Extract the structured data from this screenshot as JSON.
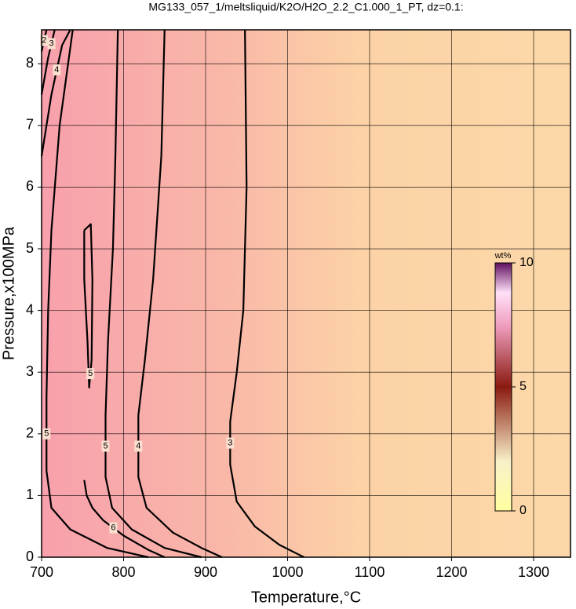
{
  "chart_data": {
    "type": "contour",
    "title": "MG133_057_1/meltsliquid/K2O/H2O_2.2_C1.000_1_PT, dz=0.1:",
    "x_label": "Temperature,°C",
    "y_label": "Pressure,x100MPa",
    "xlim": [
      700,
      1345
    ],
    "ylim": [
      0,
      8.55
    ],
    "xticks": [
      700,
      800,
      900,
      1000,
      1100,
      1200,
      1300
    ],
    "yticks": [
      0,
      1,
      2,
      3,
      4,
      5,
      6,
      7,
      8
    ],
    "grid": true,
    "contours": [
      {
        "level": 3,
        "x": [
          948,
          950,
          946,
          938,
          930,
          930,
          938,
          960,
          990,
          1020
        ],
        "y": [
          8.55,
          6,
          4,
          3,
          2.2,
          1.5,
          0.9,
          0.5,
          0.2,
          0
        ]
      },
      {
        "level": 4,
        "x": [
          850,
          846,
          836,
          826,
          818,
          818,
          828,
          860,
          895,
          920
        ],
        "y": [
          8.55,
          6.5,
          4.5,
          3.2,
          2.3,
          1.3,
          0.8,
          0.4,
          0.15,
          0
        ]
      },
      {
        "level": 5,
        "x": [
          793,
          790,
          787,
          781,
          778,
          778,
          786,
          810,
          850,
          895
        ],
        "y": [
          8.55,
          6.5,
          5,
          3.5,
          2.3,
          1.3,
          0.8,
          0.45,
          0.15,
          0
        ]
      },
      {
        "level": 5,
        "x": [
          738,
          722,
          712,
          708,
          706,
          706,
          712,
          735,
          780,
          830
        ],
        "y": [
          8.55,
          7,
          5.3,
          4,
          2.6,
          1.4,
          0.8,
          0.45,
          0.15,
          0
        ]
      },
      {
        "level": 5,
        "x": [
          752,
          760,
          762,
          761,
          758,
          756,
          752,
          752
        ],
        "y": [
          5.3,
          5.4,
          4.5,
          3.2,
          2.75,
          3.5,
          4.5,
          5.3
        ]
      },
      {
        "level": 6,
        "x": [
          752,
          755,
          762,
          775,
          800,
          830,
          850
        ],
        "y": [
          1.25,
          1.0,
          0.8,
          0.6,
          0.35,
          0.12,
          0
        ]
      },
      {
        "level": 4,
        "x": [
          700,
          712,
          725,
          735
        ],
        "y": [
          6.5,
          7.5,
          8.3,
          8.55
        ]
      },
      {
        "level": 3,
        "x": [
          700,
          708,
          716
        ],
        "y": [
          7.5,
          8.1,
          8.55
        ]
      },
      {
        "level": 2,
        "x": [
          700,
          706
        ],
        "y": [
          8.2,
          8.55
        ]
      }
    ],
    "colorbar": {
      "label": "wt%",
      "lim": [
        0,
        10
      ],
      "ticks": [
        0,
        5,
        10
      ]
    }
  }
}
